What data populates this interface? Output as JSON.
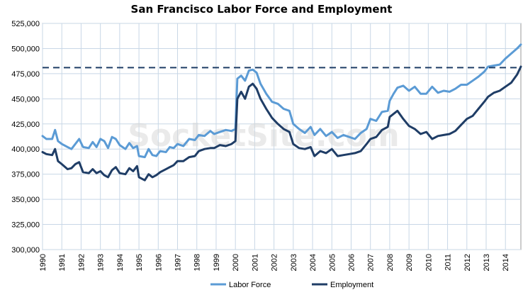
{
  "colors": {
    "labor_force": "#5b9bd5",
    "employment": "#1f3d66",
    "reference_line": "#1f3d66",
    "grid": "#c8d7e6",
    "watermark": "#d9d9d9"
  },
  "watermark": "SocketSite.com",
  "chart_data": {
    "type": "line",
    "title": "San Francisco Labor Force and Employment",
    "xlabel": "",
    "ylabel": "",
    "xlim": [
      1990,
      2014.8
    ],
    "ylim": [
      300000,
      525000
    ],
    "y_ticks": [
      300000,
      325000,
      350000,
      375000,
      400000,
      425000,
      450000,
      475000,
      500000,
      525000
    ],
    "y_tick_labels": [
      "300,000",
      "325,000",
      "350,000",
      "375,000",
      "400,000",
      "425,000",
      "450,000",
      "475,000",
      "500,000",
      "525,000"
    ],
    "x_tick_labels": [
      "1990",
      "1991",
      "1992",
      "1993",
      "1994",
      "1995",
      "1996",
      "1997",
      "1998",
      "1999",
      "2000",
      "2001",
      "2002",
      "2003",
      "2004",
      "2005",
      "2006",
      "2007",
      "2008",
      "2009",
      "2010",
      "2011",
      "2012",
      "2013",
      "2014"
    ],
    "grid": true,
    "legend_position": "bottom",
    "reference_line": {
      "y": 481000,
      "style": "dashed"
    },
    "series": [
      {
        "name": "Labor Force",
        "points": [
          [
            1990.0,
            413000
          ],
          [
            1990.2,
            410000
          ],
          [
            1990.5,
            410000
          ],
          [
            1990.65,
            419000
          ],
          [
            1990.8,
            408000
          ],
          [
            1991.0,
            405000
          ],
          [
            1991.3,
            402000
          ],
          [
            1991.5,
            400000
          ],
          [
            1991.7,
            405000
          ],
          [
            1991.9,
            410000
          ],
          [
            1992.1,
            402000
          ],
          [
            1992.4,
            401000
          ],
          [
            1992.6,
            407000
          ],
          [
            1992.8,
            402000
          ],
          [
            1993.0,
            410000
          ],
          [
            1993.2,
            408000
          ],
          [
            1993.4,
            401000
          ],
          [
            1993.6,
            412000
          ],
          [
            1993.8,
            410000
          ],
          [
            1994.0,
            404000
          ],
          [
            1994.3,
            400000
          ],
          [
            1994.5,
            406000
          ],
          [
            1994.7,
            401000
          ],
          [
            1994.9,
            403000
          ],
          [
            1995.0,
            393000
          ],
          [
            1995.3,
            392000
          ],
          [
            1995.5,
            400000
          ],
          [
            1995.7,
            394000
          ],
          [
            1995.9,
            393000
          ],
          [
            1996.1,
            398000
          ],
          [
            1996.4,
            397000
          ],
          [
            1996.6,
            402000
          ],
          [
            1996.8,
            401000
          ],
          [
            1997.0,
            405000
          ],
          [
            1997.3,
            403000
          ],
          [
            1997.6,
            410000
          ],
          [
            1997.9,
            409000
          ],
          [
            1998.1,
            414000
          ],
          [
            1998.4,
            413000
          ],
          [
            1998.7,
            418000
          ],
          [
            1998.9,
            415000
          ],
          [
            1999.2,
            417000
          ],
          [
            1999.5,
            419000
          ],
          [
            1999.8,
            418000
          ],
          [
            2000.0,
            420000
          ],
          [
            2000.1,
            470000
          ],
          [
            2000.3,
            473000
          ],
          [
            2000.5,
            468000
          ],
          [
            2000.7,
            478000
          ],
          [
            2000.9,
            479000
          ],
          [
            2001.1,
            476000
          ],
          [
            2001.3,
            465000
          ],
          [
            2001.6,
            455000
          ],
          [
            2001.9,
            447000
          ],
          [
            2002.2,
            445000
          ],
          [
            2002.5,
            440000
          ],
          [
            2002.8,
            438000
          ],
          [
            2003.0,
            425000
          ],
          [
            2003.3,
            420000
          ],
          [
            2003.6,
            416000
          ],
          [
            2003.9,
            422000
          ],
          [
            2004.1,
            414000
          ],
          [
            2004.4,
            420000
          ],
          [
            2004.7,
            413000
          ],
          [
            2005.0,
            417000
          ],
          [
            2005.3,
            411000
          ],
          [
            2005.6,
            414000
          ],
          [
            2005.9,
            412000
          ],
          [
            2006.2,
            410000
          ],
          [
            2006.5,
            416000
          ],
          [
            2006.8,
            420000
          ],
          [
            2007.0,
            430000
          ],
          [
            2007.3,
            428000
          ],
          [
            2007.6,
            437000
          ],
          [
            2007.9,
            438000
          ],
          [
            2008.0,
            448000
          ],
          [
            2008.2,
            455000
          ],
          [
            2008.4,
            461000
          ],
          [
            2008.7,
            463000
          ],
          [
            2009.0,
            458000
          ],
          [
            2009.3,
            462000
          ],
          [
            2009.6,
            455000
          ],
          [
            2009.9,
            455000
          ],
          [
            2010.2,
            462000
          ],
          [
            2010.5,
            456000
          ],
          [
            2010.8,
            458000
          ],
          [
            2011.1,
            457000
          ],
          [
            2011.4,
            460000
          ],
          [
            2011.7,
            464000
          ],
          [
            2012.0,
            464000
          ],
          [
            2012.3,
            468000
          ],
          [
            2012.6,
            472000
          ],
          [
            2012.9,
            477000
          ],
          [
            2013.1,
            482000
          ],
          [
            2013.4,
            483000
          ],
          [
            2013.7,
            484000
          ],
          [
            2014.0,
            490000
          ],
          [
            2014.3,
            495000
          ],
          [
            2014.6,
            500000
          ],
          [
            2014.8,
            504000
          ]
        ]
      },
      {
        "name": "Employment",
        "points": [
          [
            1990.0,
            397000
          ],
          [
            1990.2,
            395000
          ],
          [
            1990.5,
            394000
          ],
          [
            1990.65,
            400000
          ],
          [
            1990.8,
            388000
          ],
          [
            1991.0,
            385000
          ],
          [
            1991.3,
            380000
          ],
          [
            1991.5,
            381000
          ],
          [
            1991.7,
            385000
          ],
          [
            1991.9,
            387000
          ],
          [
            1992.1,
            377000
          ],
          [
            1992.4,
            376000
          ],
          [
            1992.6,
            380000
          ],
          [
            1992.8,
            376000
          ],
          [
            1993.0,
            378000
          ],
          [
            1993.2,
            374000
          ],
          [
            1993.4,
            372000
          ],
          [
            1993.6,
            379000
          ],
          [
            1993.8,
            382000
          ],
          [
            1994.0,
            376000
          ],
          [
            1994.3,
            375000
          ],
          [
            1994.5,
            381000
          ],
          [
            1994.7,
            378000
          ],
          [
            1994.9,
            383000
          ],
          [
            1995.0,
            372000
          ],
          [
            1995.3,
            369000
          ],
          [
            1995.5,
            375000
          ],
          [
            1995.7,
            372000
          ],
          [
            1995.9,
            374000
          ],
          [
            1996.1,
            377000
          ],
          [
            1996.4,
            380000
          ],
          [
            1996.6,
            382000
          ],
          [
            1996.8,
            384000
          ],
          [
            1997.0,
            388000
          ],
          [
            1997.3,
            388000
          ],
          [
            1997.6,
            392000
          ],
          [
            1997.9,
            393000
          ],
          [
            1998.1,
            398000
          ],
          [
            1998.4,
            400000
          ],
          [
            1998.7,
            401000
          ],
          [
            1998.9,
            401000
          ],
          [
            1999.2,
            404000
          ],
          [
            1999.5,
            403000
          ],
          [
            1999.8,
            405000
          ],
          [
            2000.0,
            408000
          ],
          [
            2000.1,
            450000
          ],
          [
            2000.3,
            457000
          ],
          [
            2000.5,
            450000
          ],
          [
            2000.7,
            462000
          ],
          [
            2000.9,
            465000
          ],
          [
            2001.1,
            460000
          ],
          [
            2001.3,
            450000
          ],
          [
            2001.6,
            440000
          ],
          [
            2001.9,
            431000
          ],
          [
            2002.2,
            425000
          ],
          [
            2002.5,
            420000
          ],
          [
            2002.8,
            417000
          ],
          [
            2003.0,
            405000
          ],
          [
            2003.3,
            401000
          ],
          [
            2003.6,
            400000
          ],
          [
            2003.9,
            402000
          ],
          [
            2004.1,
            393000
          ],
          [
            2004.4,
            398000
          ],
          [
            2004.7,
            396000
          ],
          [
            2005.0,
            400000
          ],
          [
            2005.3,
            393000
          ],
          [
            2005.6,
            394000
          ],
          [
            2005.9,
            395000
          ],
          [
            2006.2,
            396000
          ],
          [
            2006.5,
            398000
          ],
          [
            2006.8,
            405000
          ],
          [
            2007.0,
            410000
          ],
          [
            2007.3,
            412000
          ],
          [
            2007.6,
            419000
          ],
          [
            2007.9,
            422000
          ],
          [
            2008.0,
            432000
          ],
          [
            2008.2,
            435000
          ],
          [
            2008.4,
            438000
          ],
          [
            2008.7,
            430000
          ],
          [
            2009.0,
            423000
          ],
          [
            2009.3,
            420000
          ],
          [
            2009.6,
            415000
          ],
          [
            2009.9,
            417000
          ],
          [
            2010.2,
            410000
          ],
          [
            2010.5,
            413000
          ],
          [
            2010.8,
            414000
          ],
          [
            2011.1,
            415000
          ],
          [
            2011.4,
            418000
          ],
          [
            2011.7,
            424000
          ],
          [
            2012.0,
            430000
          ],
          [
            2012.3,
            433000
          ],
          [
            2012.6,
            440000
          ],
          [
            2012.9,
            447000
          ],
          [
            2013.1,
            452000
          ],
          [
            2013.4,
            456000
          ],
          [
            2013.7,
            458000
          ],
          [
            2014.0,
            462000
          ],
          [
            2014.3,
            466000
          ],
          [
            2014.6,
            474000
          ],
          [
            2014.8,
            482000
          ]
        ]
      }
    ]
  }
}
